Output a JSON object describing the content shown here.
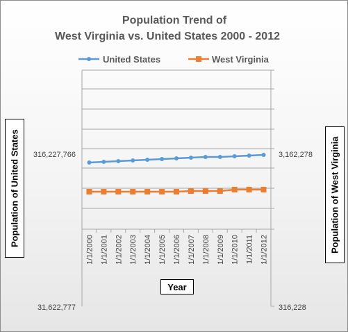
{
  "chart_data": {
    "type": "line",
    "title_line1": "Population Trend of",
    "title_line2": "West Virginia vs. United States 2000 - 2012",
    "xlabel": "Year",
    "ylabel_left": "Population of United States",
    "ylabel_right": "Population of  West Virginia",
    "categories": [
      "1/1/2000",
      "1/1/2001",
      "1/1/2002",
      "1/1/2003",
      "1/1/2004",
      "1/1/2005",
      "1/1/2006",
      "1/1/2007",
      "1/1/2008",
      "1/1/2009",
      "1/1/2010",
      "1/1/2011",
      "1/1/2012"
    ],
    "left_axis": {
      "scale": "log",
      "min_label": "31,622,777",
      "max_label": "316,227,766",
      "range": [
        31622777,
        316227766
      ]
    },
    "right_axis": {
      "scale": "log",
      "min_label": "316,228",
      "max_label": "3,162,278",
      "range": [
        316228,
        3162278
      ]
    },
    "series": [
      {
        "name": "United States",
        "axis": "left",
        "color": "#5b9bd5",
        "marker": "circle",
        "values": [
          282200000,
          285000000,
          287600000,
          290100000,
          292800000,
          295500000,
          298400000,
          301200000,
          304100000,
          306800000,
          309300000,
          311600000,
          313900000
        ]
      },
      {
        "name": "West Virginia",
        "axis": "right",
        "color": "#ed7d31",
        "marker": "square",
        "values": [
          1806000,
          1801000,
          1805000,
          1812000,
          1816000,
          1820000,
          1827000,
          1834000,
          1840000,
          1847000,
          1853000,
          1855000,
          1856000
        ]
      }
    ],
    "grid": true,
    "legend_position": "top"
  }
}
